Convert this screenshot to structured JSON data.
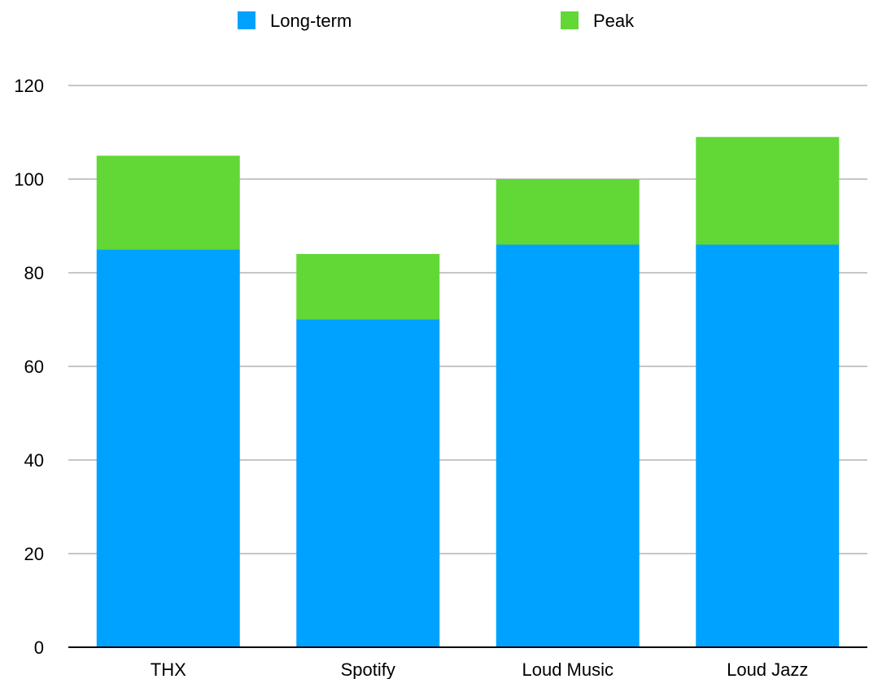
{
  "chart_data": {
    "type": "bar",
    "stacked": true,
    "categories": [
      "THX",
      "Spotify",
      "Loud Music",
      "Loud Jazz"
    ],
    "series": [
      {
        "name": "Long-term",
        "values": [
          85,
          70,
          86,
          86
        ],
        "color": "#00a2ff"
      },
      {
        "name": "Peak",
        "values": [
          20,
          14,
          14,
          23
        ],
        "color": "#61d836"
      }
    ],
    "ylim": [
      0,
      120
    ],
    "yticks": [
      0,
      20,
      40,
      60,
      80,
      100,
      120
    ],
    "title": "",
    "xlabel": "",
    "ylabel": "",
    "grid": true,
    "legend_position": "top"
  }
}
